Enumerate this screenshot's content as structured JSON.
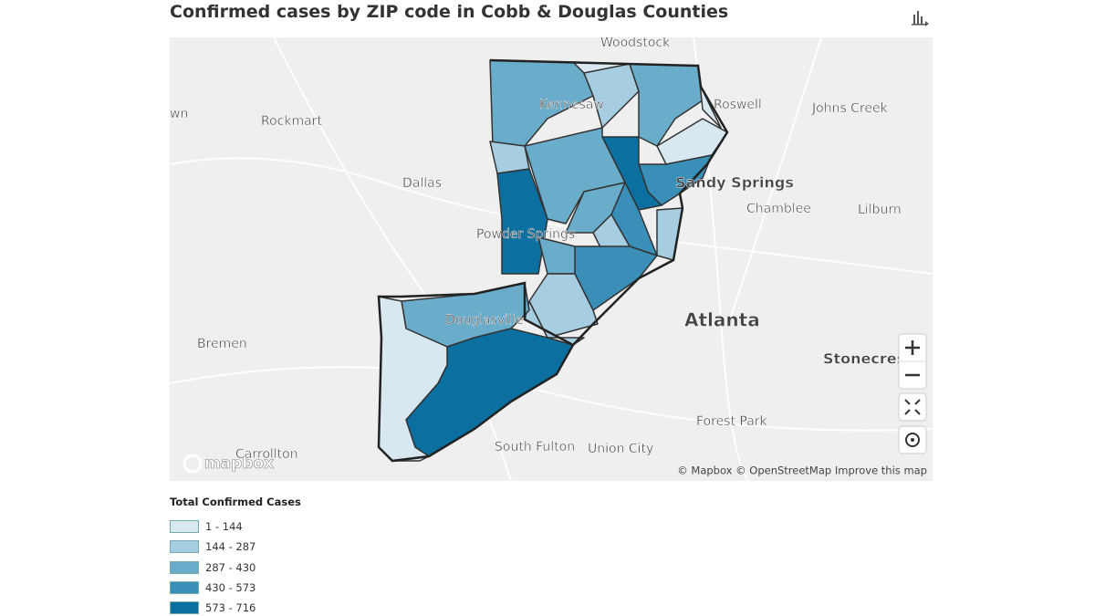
{
  "header": {
    "title": "Confirmed cases by ZIP code in Cobb & Douglas Counties"
  },
  "map": {
    "places": [
      {
        "label": "Woodstock",
        "size": "s"
      },
      {
        "label": "Roswell",
        "size": "s"
      },
      {
        "label": "Johns Creek",
        "size": "s"
      },
      {
        "label": "wn",
        "size": "s"
      },
      {
        "label": "Rockmart",
        "size": "s"
      },
      {
        "label": "Kennesaw",
        "size": "s"
      },
      {
        "label": "Dallas",
        "size": "s"
      },
      {
        "label": "Sandy Springs",
        "size": "m"
      },
      {
        "label": "Chamblee",
        "size": "s"
      },
      {
        "label": "Lilburn",
        "size": "s"
      },
      {
        "label": "Powder Springs",
        "size": "s"
      },
      {
        "label": "Atlanta",
        "size": "l"
      },
      {
        "label": "Douglasville",
        "size": "s"
      },
      {
        "label": "Bremen",
        "size": "s"
      },
      {
        "label": "Stonecrest",
        "size": "m"
      },
      {
        "label": "Forest Park",
        "size": "s"
      },
      {
        "label": "South Fulton",
        "size": "s"
      },
      {
        "label": "Union City",
        "size": "s"
      },
      {
        "label": "Carrollton",
        "size": "s"
      }
    ],
    "logo": "mapbox",
    "attribution": "© Mapbox © OpenStreetMap  Improve this map"
  },
  "legend": {
    "title": "Total Confirmed Cases",
    "bins": [
      {
        "label": "1 - 144",
        "color": "#d7e8f0"
      },
      {
        "label": "144 - 287",
        "color": "#a6cde0"
      },
      {
        "label": "287 - 430",
        "color": "#6aadcb"
      },
      {
        "label": "430 - 573",
        "color": "#3a8fb8"
      },
      {
        "label": "573 - 716",
        "color": "#0b70a0"
      }
    ]
  }
}
